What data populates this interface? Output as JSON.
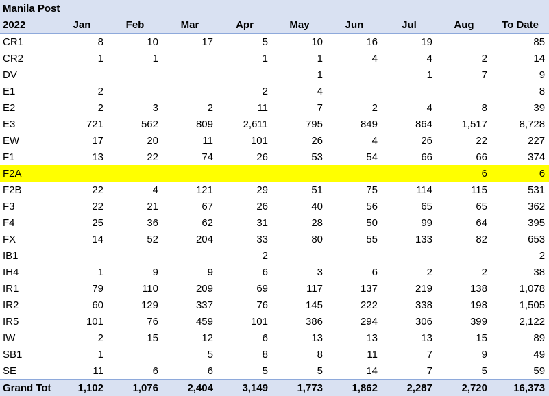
{
  "title": "Manila Post",
  "columns": [
    "2022",
    "Jan",
    "Feb",
    "Mar",
    "Apr",
    "May",
    "Jun",
    "Jul",
    "Aug",
    "To Date"
  ],
  "rows": [
    {
      "label": "CR1",
      "values": [
        "8",
        "10",
        "17",
        "5",
        "10",
        "16",
        "19",
        "",
        "85"
      ],
      "highlight": false
    },
    {
      "label": "CR2",
      "values": [
        "1",
        "1",
        "",
        "1",
        "1",
        "4",
        "4",
        "2",
        "14"
      ],
      "highlight": false
    },
    {
      "label": "DV",
      "values": [
        "",
        "",
        "",
        "",
        "1",
        "",
        "1",
        "7",
        "9"
      ],
      "highlight": false
    },
    {
      "label": "E1",
      "values": [
        "2",
        "",
        "",
        "2",
        "4",
        "",
        "",
        "",
        "8"
      ],
      "highlight": false
    },
    {
      "label": "E2",
      "values": [
        "2",
        "3",
        "2",
        "11",
        "7",
        "2",
        "4",
        "8",
        "39"
      ],
      "highlight": false
    },
    {
      "label": "E3",
      "values": [
        "721",
        "562",
        "809",
        "2,611",
        "795",
        "849",
        "864",
        "1,517",
        "8,728"
      ],
      "highlight": false
    },
    {
      "label": "EW",
      "values": [
        "17",
        "20",
        "11",
        "101",
        "26",
        "4",
        "26",
        "22",
        "227"
      ],
      "highlight": false
    },
    {
      "label": "F1",
      "values": [
        "13",
        "22",
        "74",
        "26",
        "53",
        "54",
        "66",
        "66",
        "374"
      ],
      "highlight": false
    },
    {
      "label": "F2A",
      "values": [
        "",
        "",
        "",
        "",
        "",
        "",
        "",
        "6",
        "6"
      ],
      "highlight": true
    },
    {
      "label": "F2B",
      "values": [
        "22",
        "4",
        "121",
        "29",
        "51",
        "75",
        "114",
        "115",
        "531"
      ],
      "highlight": false
    },
    {
      "label": "F3",
      "values": [
        "22",
        "21",
        "67",
        "26",
        "40",
        "56",
        "65",
        "65",
        "362"
      ],
      "highlight": false
    },
    {
      "label": "F4",
      "values": [
        "25",
        "36",
        "62",
        "31",
        "28",
        "50",
        "99",
        "64",
        "395"
      ],
      "highlight": false
    },
    {
      "label": "FX",
      "values": [
        "14",
        "52",
        "204",
        "33",
        "80",
        "55",
        "133",
        "82",
        "653"
      ],
      "highlight": false
    },
    {
      "label": "IB1",
      "values": [
        "",
        "",
        "",
        "2",
        "",
        "",
        "",
        "",
        "2"
      ],
      "highlight": false
    },
    {
      "label": "IH4",
      "values": [
        "1",
        "9",
        "9",
        "6",
        "3",
        "6",
        "2",
        "2",
        "38"
      ],
      "highlight": false
    },
    {
      "label": "IR1",
      "values": [
        "79",
        "110",
        "209",
        "69",
        "117",
        "137",
        "219",
        "138",
        "1,078"
      ],
      "highlight": false
    },
    {
      "label": "IR2",
      "values": [
        "60",
        "129",
        "337",
        "76",
        "145",
        "222",
        "338",
        "198",
        "1,505"
      ],
      "highlight": false
    },
    {
      "label": "IR5",
      "values": [
        "101",
        "76",
        "459",
        "101",
        "386",
        "294",
        "306",
        "399",
        "2,122"
      ],
      "highlight": false
    },
    {
      "label": "IW",
      "values": [
        "2",
        "15",
        "12",
        "6",
        "13",
        "13",
        "13",
        "15",
        "89"
      ],
      "highlight": false
    },
    {
      "label": "SB1",
      "values": [
        "1",
        "",
        "5",
        "8",
        "8",
        "11",
        "7",
        "9",
        "49"
      ],
      "highlight": false
    },
    {
      "label": "SE",
      "values": [
        "11",
        "6",
        "6",
        "5",
        "5",
        "14",
        "7",
        "5",
        "59"
      ],
      "highlight": false
    }
  ],
  "total": {
    "label": "Grand Tot",
    "values": [
      "1,102",
      "1,076",
      "2,404",
      "3,149",
      "1,773",
      "1,862",
      "2,287",
      "2,720",
      "16,373"
    ]
  },
  "colors": {
    "header_bg": "#d9e1f2",
    "highlight_bg": "#ffff00"
  }
}
